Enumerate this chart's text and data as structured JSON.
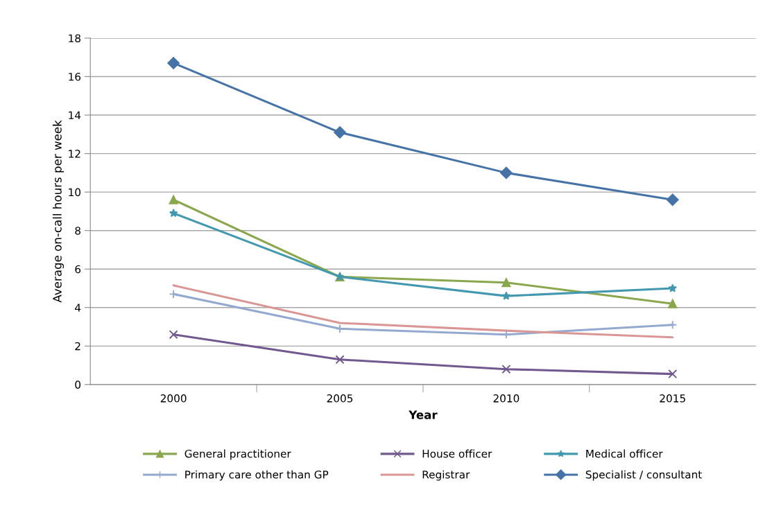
{
  "chart_data": {
    "type": "line",
    "xlabel": "Year",
    "ylabel": "Average on-call hours per week",
    "categories": [
      "2000",
      "2005",
      "2010",
      "2015"
    ],
    "series": [
      {
        "name": "General practitioner",
        "color": "#8aa74e",
        "marker": "triangle",
        "values": [
          9.6,
          5.6,
          5.3,
          4.2
        ]
      },
      {
        "name": "House officer",
        "color": "#71588f",
        "marker": "cross",
        "values": [
          2.6,
          1.3,
          0.8,
          0.55
        ]
      },
      {
        "name": "Medical officer",
        "color": "#4198af",
        "marker": "star",
        "values": [
          8.9,
          5.6,
          4.6,
          5.0
        ]
      },
      {
        "name": "Primary care other than GP",
        "color": "#93a9d0",
        "marker": "plus",
        "values": [
          4.7,
          2.9,
          2.6,
          3.1
        ]
      },
      {
        "name": "Registrar",
        "color": "#d99694",
        "marker": "none",
        "values": [
          5.15,
          3.2,
          2.8,
          2.45
        ]
      },
      {
        "name": "Specialist / consultant",
        "color": "#4573a7",
        "marker": "diamond",
        "values": [
          16.7,
          13.1,
          11.0,
          9.6
        ]
      }
    ],
    "ylim": [
      0,
      18
    ],
    "yticks": [
      0,
      2,
      4,
      6,
      8,
      10,
      12,
      14,
      16,
      18
    ],
    "grid": "y",
    "legend": "bottom",
    "line_style": "solid"
  }
}
